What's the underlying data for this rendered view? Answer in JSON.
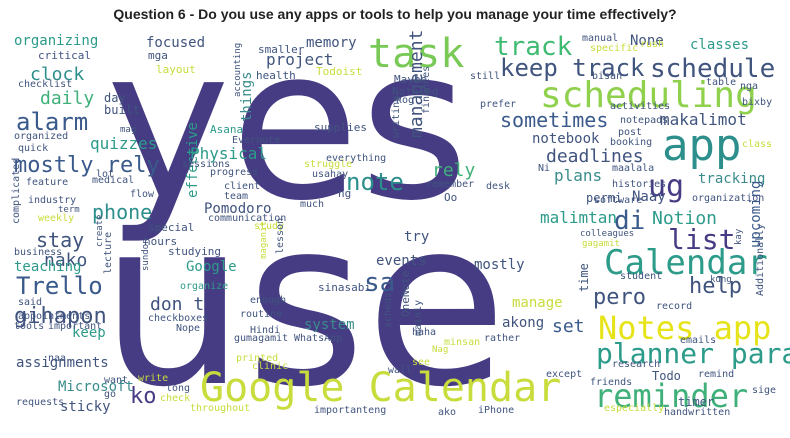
{
  "title": "Question 6 - Do you use any apps or tools to help you manage your time effectively?",
  "chart_data": {
    "type": "wordcloud",
    "words": [
      {
        "text": "yes"
      },
      {
        "text": "use"
      },
      {
        "text": "Google Calendar"
      },
      {
        "text": "app"
      },
      {
        "text": "task"
      },
      {
        "text": "scheduling"
      },
      {
        "text": "Notes app"
      },
      {
        "text": "Calendar"
      },
      {
        "text": "reminder"
      },
      {
        "text": "planner para"
      },
      {
        "text": "track"
      },
      {
        "text": "keep track"
      },
      {
        "text": "schedule"
      },
      {
        "text": "ug"
      },
      {
        "text": "list"
      },
      {
        "text": "di"
      },
      {
        "text": "alarm"
      },
      {
        "text": "mostly rely"
      },
      {
        "text": "Trello"
      },
      {
        "text": "sa"
      },
      {
        "text": "note"
      },
      {
        "text": "management"
      },
      {
        "text": "sometimes"
      },
      {
        "text": "help"
      },
      {
        "text": "pero"
      },
      {
        "text": "gihapon"
      },
      {
        "text": "ko"
      },
      {
        "text": "phone"
      },
      {
        "text": "stay"
      },
      {
        "text": "clock"
      },
      {
        "text": "daily"
      },
      {
        "text": "nako"
      },
      {
        "text": "Notion"
      },
      {
        "text": "deadlines"
      },
      {
        "text": "rely"
      },
      {
        "text": "set"
      },
      {
        "text": "don t"
      },
      {
        "text": "organizing"
      },
      {
        "text": "project"
      },
      {
        "text": "focused"
      },
      {
        "text": "memory"
      },
      {
        "text": "None"
      },
      {
        "text": "classes"
      },
      {
        "text": "quizzes"
      },
      {
        "text": "Physical"
      },
      {
        "text": "makalimot"
      },
      {
        "text": "notebook"
      },
      {
        "text": "tracking"
      },
      {
        "text": "plans"
      },
      {
        "text": "Naay"
      },
      {
        "text": "malimtan"
      },
      {
        "text": "upcoming"
      },
      {
        "text": "manage"
      },
      {
        "text": "akong"
      },
      {
        "text": "mostly"
      },
      {
        "text": "events"
      },
      {
        "text": "try"
      },
      {
        "text": "assignments"
      },
      {
        "text": "teaching"
      },
      {
        "text": "keep"
      },
      {
        "text": "Microsoft"
      },
      {
        "text": "sticky"
      },
      {
        "text": "Pomodoro"
      },
      {
        "text": "Google"
      },
      {
        "text": "system"
      },
      {
        "text": "things"
      },
      {
        "text": "effective"
      },
      {
        "text": "day"
      },
      {
        "text": "built"
      },
      {
        "text": "Todo"
      },
      {
        "text": "timer"
      },
      {
        "text": "critical"
      },
      {
        "text": "mga"
      },
      {
        "text": "layout"
      },
      {
        "text": "smaller"
      },
      {
        "text": "Todoist"
      },
      {
        "text": "health"
      },
      {
        "text": "Maybe"
      },
      {
        "text": "Nothing"
      },
      {
        "text": "kog"
      },
      {
        "text": "manual"
      },
      {
        "text": "specific"
      },
      {
        "text": "rush"
      },
      {
        "text": "bisan"
      },
      {
        "text": "still"
      },
      {
        "text": "table"
      },
      {
        "text": "nga"
      },
      {
        "text": "bixby"
      },
      {
        "text": "class"
      },
      {
        "text": "activities"
      },
      {
        "text": "notepads"
      },
      {
        "text": "booking"
      },
      {
        "text": "post"
      },
      {
        "text": "prefer"
      },
      {
        "text": "finances"
      },
      {
        "text": "writing"
      },
      {
        "text": "supplies"
      },
      {
        "text": "Asana"
      },
      {
        "text": "Evernote"
      },
      {
        "text": "accounting"
      },
      {
        "text": "checklist"
      },
      {
        "text": "organized"
      },
      {
        "text": "quick"
      },
      {
        "text": "mag"
      },
      {
        "text": "sessions"
      },
      {
        "text": "progress"
      },
      {
        "text": "client"
      },
      {
        "text": "struggle"
      },
      {
        "text": "everything"
      },
      {
        "text": "usahay"
      },
      {
        "text": "remember"
      },
      {
        "text": "maalala"
      },
      {
        "text": "Ni"
      },
      {
        "text": "desk"
      },
      {
        "text": "histories"
      },
      {
        "text": "software"
      },
      {
        "text": "permi"
      },
      {
        "text": "organization"
      },
      {
        "text": "colleagues"
      },
      {
        "text": "gagamit"
      },
      {
        "text": "feature"
      },
      {
        "text": "industry"
      },
      {
        "text": "medical"
      },
      {
        "text": "flow"
      },
      {
        "text": "term"
      },
      {
        "text": "weekly"
      },
      {
        "text": "lot"
      },
      {
        "text": "team"
      },
      {
        "text": "communication"
      },
      {
        "text": "study"
      },
      {
        "text": "special"
      },
      {
        "text": "hours"
      },
      {
        "text": "studying"
      },
      {
        "text": "organize"
      },
      {
        "text": "business"
      },
      {
        "text": "create"
      },
      {
        "text": "complicated"
      },
      {
        "text": "lecture"
      },
      {
        "text": "sundon"
      },
      {
        "text": "maganit"
      },
      {
        "text": "lesson"
      },
      {
        "text": "sinasabi"
      },
      {
        "text": "routine"
      },
      {
        "text": "enough"
      },
      {
        "text": "gumagamit"
      },
      {
        "text": "OneNote"
      },
      {
        "text": "scheds"
      },
      {
        "text": "mainly"
      },
      {
        "text": "time"
      },
      {
        "text": "student"
      },
      {
        "text": "kung"
      },
      {
        "text": "Additionally"
      },
      {
        "text": "kay"
      },
      {
        "text": "record"
      },
      {
        "text": "emails"
      },
      {
        "text": "said"
      },
      {
        "text": "appointments"
      },
      {
        "text": "tools"
      },
      {
        "text": "important"
      },
      {
        "text": "checkboxes"
      },
      {
        "text": "Nope"
      },
      {
        "text": "Hindi"
      },
      {
        "text": "WhatsApp"
      },
      {
        "text": "haha"
      },
      {
        "text": "Nag"
      },
      {
        "text": "minsan"
      },
      {
        "text": "rather"
      },
      {
        "text": "research"
      },
      {
        "text": "naa"
      },
      {
        "text": "want"
      },
      {
        "text": "write"
      },
      {
        "text": "long"
      },
      {
        "text": "go"
      },
      {
        "text": "check"
      },
      {
        "text": "printed"
      },
      {
        "text": "clinic"
      },
      {
        "text": "see"
      },
      {
        "text": "wall"
      },
      {
        "text": "except"
      },
      {
        "text": "friends"
      },
      {
        "text": "remind"
      },
      {
        "text": "sige"
      },
      {
        "text": "requests"
      },
      {
        "text": "throughout"
      },
      {
        "text": "importanteng"
      },
      {
        "text": "iPhone"
      },
      {
        "text": "ako"
      },
      {
        "text": "especially"
      },
      {
        "text": "handwritten"
      },
      {
        "text": "much"
      },
      {
        "text": "ng"
      },
      {
        "text": "Oo"
      }
    ]
  }
}
